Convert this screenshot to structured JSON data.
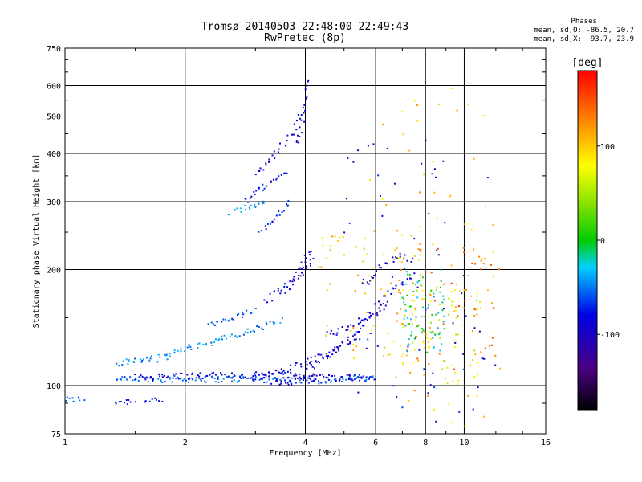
{
  "chart_data": {
    "type": "scatter",
    "title": "Tromsø 20140503 22:48:00–22:49:43",
    "subtitle": "RwPretec (8p)",
    "xlabel": "Frequency [MHz]",
    "ylabel": "Stationary phase Virtual Height [km]",
    "xscale": "log",
    "yscale": "log",
    "xlim": [
      1,
      16
    ],
    "ylim": [
      75,
      750
    ],
    "xticks": [
      1,
      2,
      4,
      6,
      8,
      10,
      16
    ],
    "xtick_labels": [
      "1",
      "2",
      "4",
      "6",
      "8",
      "10",
      "16"
    ],
    "yticks": [
      75,
      100,
      200,
      300,
      400,
      500,
      600,
      750
    ],
    "ytick_labels": [
      "75",
      "100",
      "200",
      "300",
      "400",
      "500",
      "600",
      "750"
    ],
    "grid": true,
    "stats": {
      "heading": "Phases",
      "line_o": "mean, sd,O: -86.5, 20.7",
      "line_x": "mean, sd,X:  93.7, 23.9"
    },
    "colorbar": {
      "label": "[deg]",
      "min": -180,
      "max": 180,
      "ticks": [
        100,
        0,
        -100
      ],
      "tick_labels": [
        "100",
        "0",
        "-100"
      ],
      "colormap": "rainbow (black-purple-blue-cyan-green-yellow-red)"
    },
    "traces": [
      {
        "f": [
          1.0,
          1.12
        ],
        "h": [
          92,
          92
        ],
        "phase": -55
      },
      {
        "f": [
          1.33,
          1.5
        ],
        "h": [
          91,
          91
        ],
        "phase": -75
      },
      {
        "f": [
          1.6,
          1.75
        ],
        "h": [
          92,
          92
        ],
        "phase": -75
      },
      {
        "f": [
          1.33,
          1.5,
          2.0,
          3.0,
          4.0,
          5.0,
          6.0
        ],
        "h": [
          103,
          104,
          104,
          104,
          103,
          104,
          104
        ],
        "phase": -55
      },
      {
        "f": [
          1.5,
          2.0,
          2.5,
          3.5,
          4.0,
          4.5,
          5.0,
          6.0
        ],
        "h": [
          105,
          106,
          106,
          107,
          106,
          105,
          105,
          105
        ],
        "phase": -85
      },
      {
        "f": [
          1.35,
          1.5,
          1.75,
          2.0,
          2.5,
          3.0,
          3.5
        ],
        "h": [
          114,
          116,
          118,
          125,
          132,
          140,
          148
        ],
        "phase": -45
      },
      {
        "f": [
          2.3,
          2.5,
          2.8,
          3.0
        ],
        "h": [
          143,
          147,
          152,
          158
        ],
        "phase": -60
      },
      {
        "f": [
          3.0,
          3.5,
          4.0,
          4.5,
          5.0,
          5.5
        ],
        "h": [
          105,
          110,
          115,
          120,
          128,
          135
        ],
        "phase": -90
      },
      {
        "f": [
          3.3,
          3.6,
          4.0,
          4.3
        ],
        "h": [
          102,
          102,
          103,
          106
        ],
        "phase": -100
      },
      {
        "f": [
          4.0,
          4.5,
          5.0,
          5.5,
          6.0
        ],
        "h": [
          110,
          118,
          128,
          140,
          158
        ],
        "phase": -90
      },
      {
        "f": [
          4.5,
          5.0,
          5.5,
          6.0,
          6.5
        ],
        "h": [
          135,
          140,
          148,
          155,
          165
        ],
        "phase": -95
      },
      {
        "f": [
          3.5,
          3.8,
          4.0,
          4.2
        ],
        "h": [
          175,
          190,
          200,
          215
        ],
        "phase": -100
      },
      {
        "f": [
          3.2,
          3.5,
          3.8,
          4.0,
          4.1
        ],
        "h": [
          165,
          180,
          195,
          210,
          225
        ],
        "phase": -85
      },
      {
        "f": [
          5.5,
          6.0,
          6.5,
          7.0,
          7.5
        ],
        "h": [
          185,
          195,
          210,
          220,
          205
        ],
        "phase": -100
      },
      {
        "f": [
          6.0,
          6.5,
          7.0,
          7.5
        ],
        "h": [
          160,
          175,
          185,
          195
        ],
        "phase": -90
      },
      {
        "f": [
          2.6,
          2.8,
          3.0,
          3.2
        ],
        "h": [
          280,
          290,
          295,
          300
        ],
        "phase": -40
      },
      {
        "f": [
          2.8,
          3.0,
          3.2,
          3.4,
          3.6
        ],
        "h": [
          300,
          315,
          330,
          345,
          360
        ],
        "phase": -80
      },
      {
        "f": [
          3.0,
          3.2,
          3.5,
          3.8,
          4.0
        ],
        "h": [
          350,
          380,
          420,
          470,
          520
        ],
        "phase": -85
      },
      {
        "f": [
          3.8,
          3.9,
          4.0,
          4.05
        ],
        "h": [
          420,
          470,
          550,
          640
        ],
        "phase": -95
      },
      {
        "f": [
          3.1,
          3.3,
          3.5,
          3.7
        ],
        "h": [
          250,
          265,
          285,
          300
        ],
        "phase": -75
      }
    ],
    "clouds": [
      {
        "f": [
          4.3,
          8.0
        ],
        "h": [
          115,
          250
        ],
        "phase": 95
      },
      {
        "f": [
          6.5,
          12.0
        ],
        "h": [
          110,
          230
        ],
        "phase": 130
      },
      {
        "f": [
          7.0,
          11.0
        ],
        "h": [
          100,
          180
        ],
        "phase": 75
      },
      {
        "f": [
          5.5,
          12.5
        ],
        "h": [
          78,
          600
        ],
        "phase": 105
      },
      {
        "f": [
          5.0,
          12.0
        ],
        "h": [
          80,
          450
        ],
        "phase": -90
      },
      {
        "f": [
          7.0,
          9.0
        ],
        "h": [
          120,
          200
        ],
        "phase": -20
      }
    ]
  }
}
